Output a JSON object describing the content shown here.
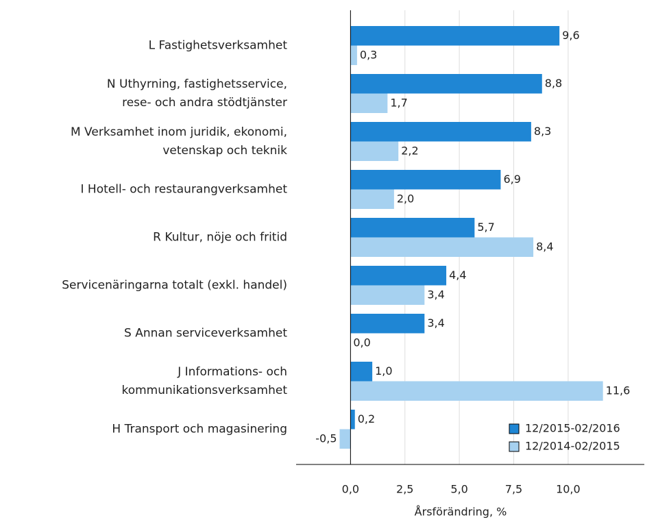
{
  "chart_data": {
    "type": "barh",
    "categories": [
      "L Fastighetsverksamhet",
      "N Uthyrning, fastighetsservice,\nrese- och andra stödtjänster",
      "M Verksamhet inom juridik, ekonomi,\nvetenskap och teknik",
      "I Hotell- och restaurangverksamhet",
      "R Kultur, nöje och fritid",
      "Servicenäringarna totalt (exkl. handel)",
      "S Annan serviceverksamhet",
      "J Informations- och\nkommunikationsverksamhet",
      "H Transport och magasinering"
    ],
    "series": [
      {
        "name": "12/2015-02/2016",
        "color": "#1f86d4",
        "values": [
          9.6,
          8.8,
          8.3,
          6.9,
          5.7,
          4.4,
          3.4,
          1.0,
          0.2
        ],
        "value_labels": [
          "9,6",
          "8,8",
          "8,3",
          "6,9",
          "5,7",
          "4,4",
          "3,4",
          "1,0",
          "0,2"
        ]
      },
      {
        "name": "12/2014-02/2015",
        "color": "#a6d1f0",
        "values": [
          0.3,
          1.7,
          2.2,
          2.0,
          8.4,
          3.4,
          0.0,
          11.6,
          -0.5
        ],
        "value_labels": [
          "0,3",
          "1,7",
          "2,2",
          "2,0",
          "8,4",
          "3,4",
          "0,0",
          "11,6",
          "-0,5"
        ]
      }
    ],
    "xlabel": "Årsförändring, %",
    "xlim": [
      -2.5,
      13.5
    ],
    "xticks": [
      {
        "value": 0,
        "label": "0,0"
      },
      {
        "value": 2.5,
        "label": "2,5"
      },
      {
        "value": 5,
        "label": "5,0"
      },
      {
        "value": 7.5,
        "label": "7,5"
      },
      {
        "value": 10,
        "label": "10,0"
      }
    ],
    "grid": true,
    "legend": "lower right"
  }
}
